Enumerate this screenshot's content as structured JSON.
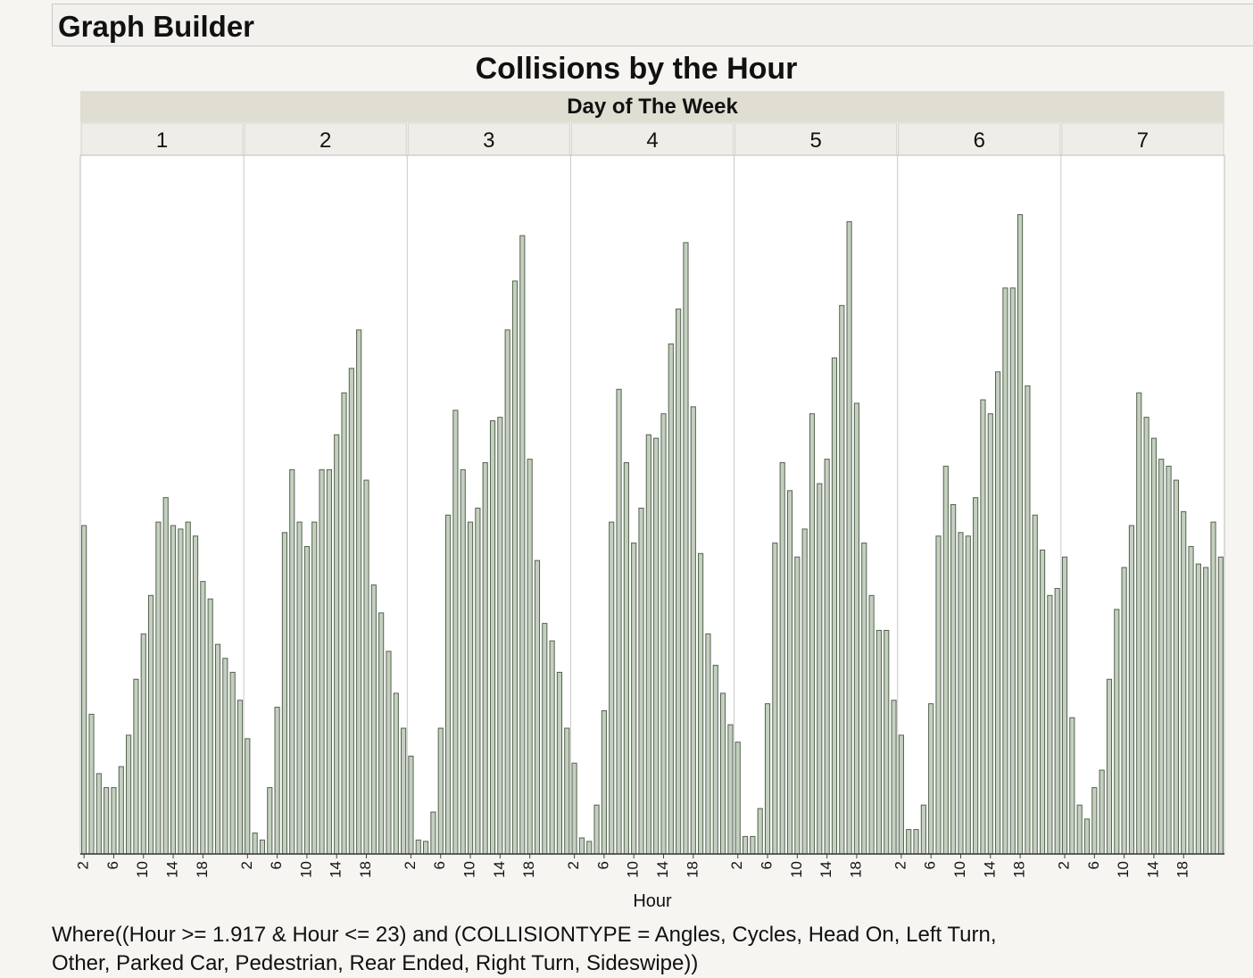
{
  "window": {
    "title": "Graph Builder"
  },
  "colors": {
    "bar_fill": "#c3d0bf",
    "bar_stroke": "#56614f",
    "background": "#f6f5f1",
    "facet_bg": "#e0ded2"
  },
  "footnote": {
    "line1": "Where((Hour >= 1.917 & Hour <= 23) and (COLLISIONTYPE = Angles, Cycles, Head On, Left Turn,",
    "line2": "Other, Parked Car, Pedestrian, Rear Ended, Right Turn, Sideswipe))"
  },
  "chart_data": {
    "type": "bar",
    "title": "Collisions by the Hour",
    "facet_label": "Day of The Week",
    "xlabel": "Hour",
    "ylabel": "",
    "y_axis_shown": false,
    "ylim": [
      0,
      100
    ],
    "hours": [
      2,
      3,
      4,
      5,
      6,
      7,
      8,
      9,
      10,
      11,
      12,
      13,
      14,
      15,
      16,
      17,
      18,
      19,
      20,
      21,
      22,
      23
    ],
    "x_tick_labels": [
      "2",
      "6",
      "10",
      "14",
      "18"
    ],
    "panels": [
      {
        "day": "1",
        "values": [
          47,
          20,
          11.5,
          9.5,
          9.5,
          12.5,
          17,
          25,
          31.5,
          37,
          47.5,
          51,
          47,
          46.5,
          47.5,
          45.5,
          39,
          36.5,
          30,
          28,
          26,
          22
        ]
      },
      {
        "day": "2",
        "values": [
          16.5,
          3,
          2,
          9.5,
          21,
          46,
          55,
          47.5,
          44,
          47.5,
          55,
          55,
          60,
          66,
          69.5,
          75,
          53.5,
          38.5,
          34.5,
          29,
          23,
          18
        ]
      },
      {
        "day": "3",
        "values": [
          14,
          2,
          1.8,
          6,
          18,
          48.5,
          63.5,
          55,
          47.5,
          49.5,
          56,
          62,
          62.5,
          75,
          82,
          88.5,
          56.5,
          42,
          33,
          30.5,
          26,
          18
        ]
      },
      {
        "day": "4",
        "values": [
          13,
          2.3,
          1.8,
          7,
          20.5,
          47.5,
          66.5,
          56,
          44.5,
          49.5,
          60,
          59.5,
          63,
          73,
          78,
          87.5,
          64,
          43,
          31.5,
          27,
          23,
          18.5
        ]
      },
      {
        "day": "5",
        "values": [
          16,
          2.5,
          2.5,
          6.5,
          21.5,
          44.5,
          56,
          52,
          42.5,
          46.5,
          63,
          53,
          56.5,
          71,
          78.5,
          90.5,
          64.5,
          44.5,
          37,
          32,
          32,
          22
        ]
      },
      {
        "day": "6",
        "values": [
          17,
          3.5,
          3.5,
          7,
          21.5,
          45.5,
          55.5,
          50,
          46,
          45.5,
          51,
          65,
          63,
          69,
          81,
          81,
          91.5,
          67,
          48.5,
          43.5,
          37,
          38
        ]
      },
      {
        "day": "7",
        "values": [
          42.5,
          19.5,
          7,
          5,
          9.5,
          12,
          25,
          35,
          41,
          47,
          66,
          62.5,
          59.5,
          56.5,
          55.5,
          53.5,
          49,
          44,
          41.5,
          41,
          47.5,
          42.5
        ]
      }
    ]
  }
}
